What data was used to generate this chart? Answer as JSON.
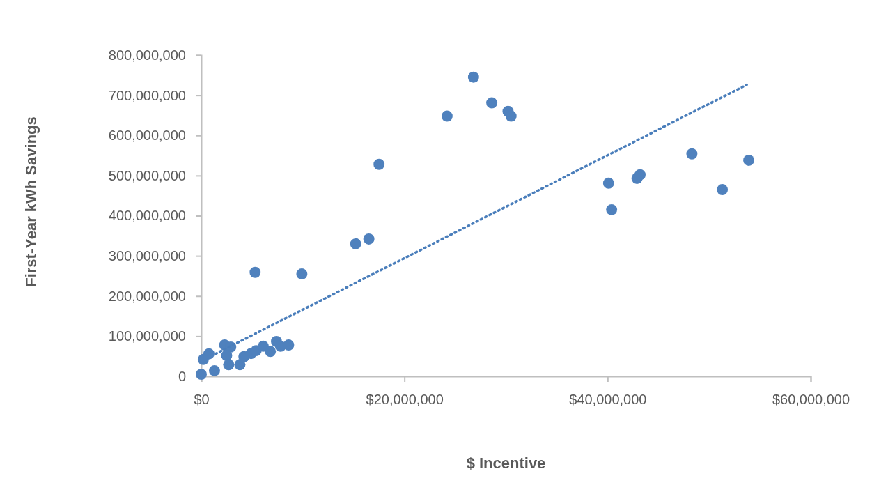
{
  "chart_data": {
    "type": "scatter",
    "xlabel": "$ Incentive",
    "ylabel": "First-Year kWh Savings",
    "marker": "circle",
    "grid": false,
    "xlim": [
      0,
      60000000
    ],
    "xticks": [
      {
        "value": 0,
        "label": "$0"
      },
      {
        "value": 20000000,
        "label": "$20,000,000"
      },
      {
        "value": 40000000,
        "label": "$40,000,000"
      },
      {
        "value": 60000000,
        "label": "$60,000,000"
      }
    ],
    "ylim": [
      0,
      800000000
    ],
    "yticks": [
      0,
      {
        "value": 100000000,
        "label": "100,000,000"
      },
      {
        "value": 200000000,
        "label": "200,000,000"
      },
      {
        "value": 300000000,
        "label": "300,000,000"
      },
      {
        "value": 400000000,
        "label": "400,000,000"
      },
      {
        "value": 500000000,
        "label": "500,000,000"
      },
      {
        "value": 600000000,
        "label": "600,000,000"
      },
      {
        "value": 700000000,
        "label": "700,000,000"
      },
      {
        "value": 800000000,
        "label": "800,000,000"
      }
    ],
    "series": [
      {
        "color": "#4f81bd",
        "x": [
          26800000,
          28600000,
          30200000,
          30500000,
          24200000,
          17500000,
          16500000,
          15200000,
          5300000,
          9900000,
          40100000,
          40400000,
          42900000,
          43200000,
          48300000,
          51300000,
          53900000,
          1300000,
          750000,
          2300000,
          2900000,
          2500000,
          2700000,
          3800000,
          4200000,
          4900000,
          5400000,
          6100000,
          6800000,
          7400000,
          7800000,
          8600000,
          200000,
          0
        ],
        "values": [
          745000000,
          681000000,
          660000000,
          648000000,
          648000000,
          528000000,
          342000000,
          330000000,
          259000000,
          255000000,
          481000000,
          415000000,
          493000000,
          502000000,
          554000000,
          465000000,
          538000000,
          14000000,
          56000000,
          78000000,
          73000000,
          52000000,
          29000000,
          29000000,
          49000000,
          57000000,
          64000000,
          75000000,
          62000000,
          87000000,
          75000000,
          78000000,
          42000000,
          5000000
        ]
      },
      {
        "type": "line",
        "color": "#4a7ebb",
        "line_style": "dotted",
        "marker": "none",
        "x": [
          1400000,
          53700000
        ],
        "values": [
          56000000,
          726000000
        ]
      }
    ]
  }
}
